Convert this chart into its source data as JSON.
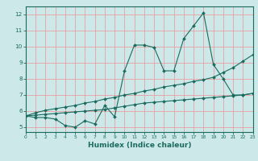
{
  "xlabel": "Humidex (Indice chaleur)",
  "x": [
    0,
    1,
    2,
    3,
    4,
    5,
    6,
    7,
    8,
    9,
    10,
    11,
    12,
    13,
    14,
    15,
    16,
    17,
    18,
    19,
    20,
    21,
    22,
    23
  ],
  "line1": [
    5.7,
    5.6,
    5.6,
    5.5,
    5.1,
    5.0,
    5.4,
    5.2,
    6.35,
    5.65,
    8.5,
    10.1,
    10.1,
    9.95,
    8.5,
    8.5,
    10.5,
    11.3,
    12.1,
    8.9,
    8.0,
    7.0,
    7.0,
    7.1
  ],
  "line2": [
    5.7,
    5.9,
    6.05,
    6.15,
    6.25,
    6.35,
    6.5,
    6.6,
    6.75,
    6.85,
    7.0,
    7.1,
    7.25,
    7.35,
    7.5,
    7.6,
    7.7,
    7.85,
    7.95,
    8.1,
    8.4,
    8.7,
    9.1,
    9.5
  ],
  "line3": [
    5.7,
    5.75,
    5.8,
    5.85,
    5.9,
    5.95,
    6.0,
    6.05,
    6.1,
    6.2,
    6.3,
    6.4,
    6.5,
    6.55,
    6.6,
    6.65,
    6.7,
    6.75,
    6.8,
    6.85,
    6.9,
    6.95,
    7.0,
    7.1
  ],
  "line_color": "#1a6b5e",
  "bg_color": "#cce8e8",
  "grid_color_h": "#e8a0a0",
  "grid_color_v": "#e8a0a0",
  "xlim": [
    0,
    23
  ],
  "ylim": [
    4.7,
    12.5
  ],
  "yticks": [
    5,
    6,
    7,
    8,
    9,
    10,
    11,
    12
  ],
  "xticks": [
    0,
    1,
    2,
    3,
    4,
    5,
    6,
    7,
    8,
    9,
    10,
    11,
    12,
    13,
    14,
    15,
    16,
    17,
    18,
    19,
    20,
    21,
    22,
    23
  ],
  "xlabel_fontsize": 6.5,
  "tick_fontsize": 5.0
}
